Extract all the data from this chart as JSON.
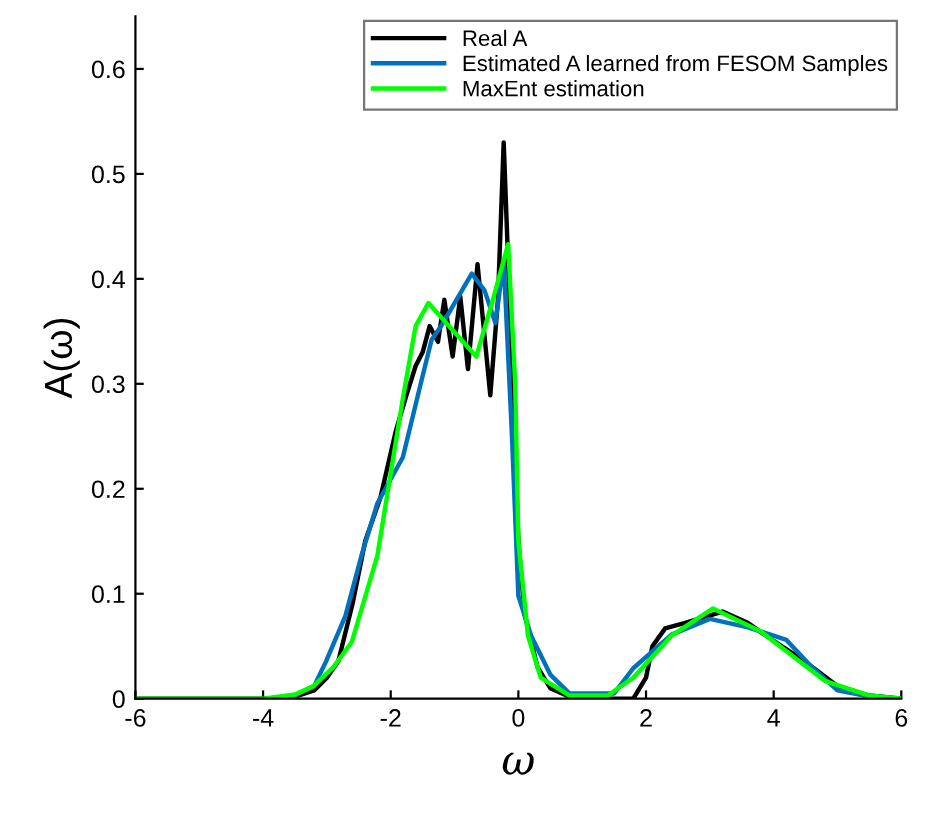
{
  "chart_data": {
    "type": "line",
    "xlabel": "ω",
    "ylabel": "A(ω)",
    "xlim": [
      -6,
      6
    ],
    "ylim": [
      0,
      0.65
    ],
    "xticks": [
      -6,
      -4,
      -2,
      0,
      2,
      4,
      6
    ],
    "yticks": [
      0,
      0.1,
      0.2,
      0.3,
      0.4,
      0.5,
      0.6
    ],
    "legend": "top right",
    "grid": false,
    "line_style": "solid",
    "marker": "none",
    "series": [
      {
        "name": "Real A",
        "color": "#000000",
        "x": [
          -6,
          -4,
          -3.5,
          -3.2,
          -3,
          -2.82,
          -2.6,
          -2.4,
          -2.16,
          -1.92,
          -1.75,
          -1.61,
          -1.5,
          -1.39,
          -1.26,
          -1.16,
          -1.03,
          -0.91,
          -0.79,
          -0.64,
          -0.44,
          -0.32,
          -0.23,
          -0.12,
          0,
          0.1,
          0.3,
          0.5,
          0.8,
          1,
          1.8,
          2,
          2.1,
          2.3,
          2.6,
          3.2,
          3.6,
          4,
          4.5,
          5,
          5.5,
          6
        ],
        "values": [
          0,
          0,
          0.002,
          0.008,
          0.02,
          0.036,
          0.09,
          0.15,
          0.192,
          0.255,
          0.29,
          0.317,
          0.33,
          0.355,
          0.34,
          0.38,
          0.326,
          0.383,
          0.314,
          0.414,
          0.289,
          0.38,
          0.53,
          0.35,
          0.15,
          0.08,
          0.03,
          0.01,
          0.002,
          0,
          0,
          0.02,
          0.05,
          0.067,
          0.072,
          0.083,
          0.072,
          0.055,
          0.035,
          0.012,
          0.003,
          0
        ]
      },
      {
        "name": "Estimated A learned from FESOM Samples",
        "color": "#0072bd",
        "x": [
          -3.5,
          -3.2,
          -3.01,
          -2.71,
          -2.46,
          -2.21,
          -1.81,
          -1.51,
          -1.36,
          -1.21,
          -0.73,
          -0.53,
          -0.36,
          -0.23,
          -0.1,
          0,
          0.2,
          0.5,
          0.8,
          1.5,
          1.8,
          2.4,
          3,
          3.6,
          4.2,
          4.6,
          5,
          5.5,
          6
        ],
        "values": [
          0.003,
          0.012,
          0.036,
          0.079,
          0.136,
          0.186,
          0.23,
          0.305,
          0.342,
          0.355,
          0.405,
          0.389,
          0.358,
          0.417,
          0.25,
          0.098,
          0.06,
          0.023,
          0.005,
          0.005,
          0.029,
          0.061,
          0.076,
          0.068,
          0.056,
          0.03,
          0.008,
          0.002,
          0
        ]
      },
      {
        "name": "MaxEnt estimation",
        "color": "#00ff00",
        "x": [
          -6,
          -4,
          -3.5,
          -3.21,
          -2.9,
          -2.61,
          -2.21,
          -1.81,
          -1.61,
          -1.41,
          -0.66,
          -0.4,
          -0.16,
          -0.05,
          0,
          0.15,
          0.35,
          0.8,
          1.4,
          1.8,
          2.4,
          3.05,
          3.8,
          4.8,
          5.5,
          6
        ],
        "values": [
          0,
          0,
          0.004,
          0.012,
          0.03,
          0.054,
          0.136,
          0.286,
          0.355,
          0.377,
          0.326,
          0.38,
          0.433,
          0.3,
          0.15,
          0.06,
          0.02,
          0.003,
          0.003,
          0.02,
          0.06,
          0.086,
          0.064,
          0.017,
          0.003,
          0
        ]
      }
    ]
  }
}
